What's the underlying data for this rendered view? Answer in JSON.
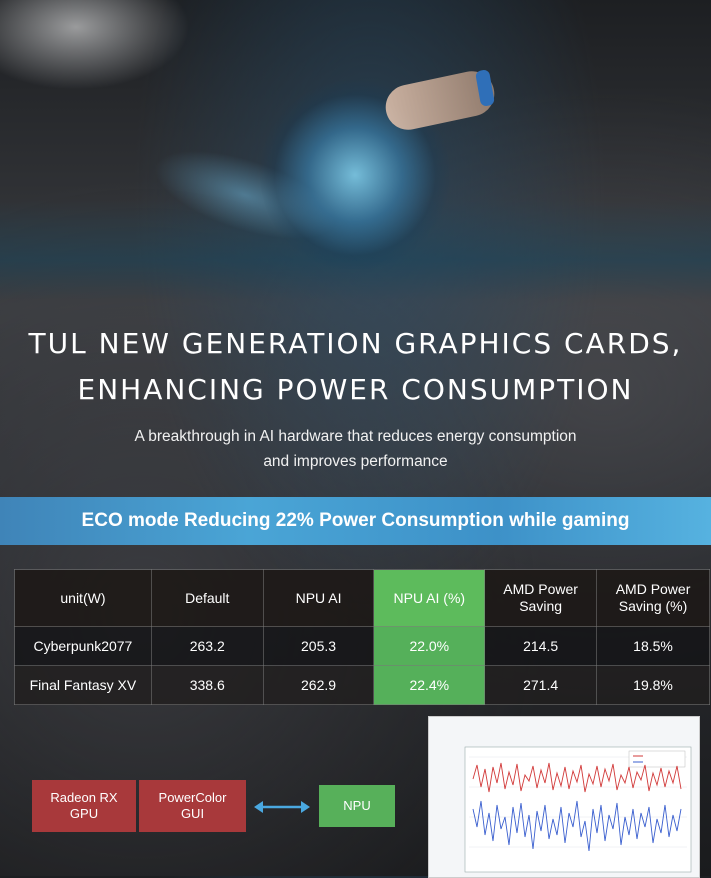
{
  "headline": {
    "line1": "TUL NEW GENERATION GRAPHICS CARDS,",
    "line2": "ENHANCING POWER CONSUMPTION"
  },
  "subtitle": {
    "line1": "A breakthrough in AI hardware that reduces energy consumption",
    "line2": "and improves performance"
  },
  "banner": "ECO mode Reducing 22% Power Consumption while gaming",
  "table": {
    "headers": [
      "unit(W)",
      "Default",
      "NPU AI",
      "NPU AI (%)",
      "AMD Power Saving",
      "AMD Power Saving (%)"
    ],
    "rows": [
      [
        "Cyberpunk2077",
        "263.2",
        "205.3",
        "22.0%",
        "214.5",
        "18.5%"
      ],
      [
        "Final Fantasy XV",
        "338.6",
        "262.9",
        "22.4%",
        "271.4",
        "19.8%"
      ]
    ]
  },
  "diagram": {
    "gpu": "Radeon RX GPU",
    "gui": "PowerColor GUI",
    "npu": "NPU"
  },
  "colors": {
    "banner": "#4aa5d6",
    "highlight": "#55b05a",
    "red_box": "#a8393b",
    "arrow": "#4aa8e0"
  }
}
